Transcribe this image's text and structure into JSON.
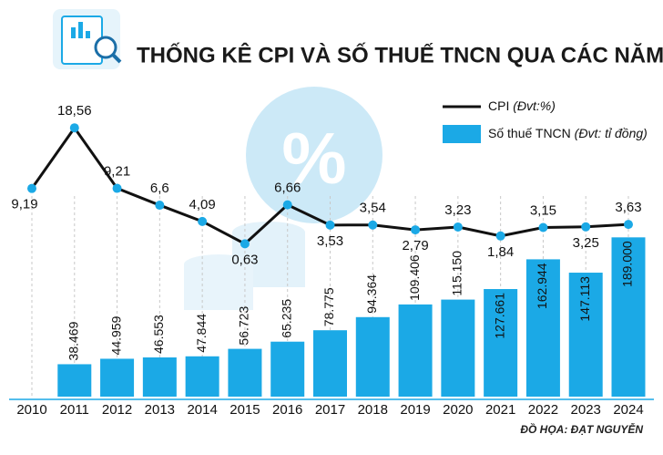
{
  "chart_data": {
    "type": "bar-line",
    "title": "THỐNG KÊ CPI VÀ SỐ THUẾ TNCN QUA CÁC NĂM",
    "credit": "ĐỒ HỌA: ĐẠT NGUYỄN",
    "categories": [
      "2010",
      "2011",
      "2012",
      "2013",
      "2014",
      "2015",
      "2016",
      "2017",
      "2018",
      "2019",
      "2020",
      "2021",
      "2022",
      "2023",
      "2024"
    ],
    "series": [
      {
        "name": "CPI",
        "unit_label": "(Đvt:%)",
        "type": "line",
        "color": "#111111",
        "values": [
          9.19,
          18.56,
          9.21,
          6.6,
          4.09,
          0.63,
          6.66,
          3.53,
          3.54,
          2.79,
          3.23,
          1.84,
          3.15,
          3.25,
          3.63
        ],
        "value_labels": [
          "9,19",
          "18,56",
          "9,21",
          "6,6",
          "4,09",
          "0,63",
          "6,66",
          "3,53",
          "3,54",
          "2,79",
          "3,23",
          "1,84",
          "3,15",
          "3,25",
          "3,63"
        ]
      },
      {
        "name": "Số thuế TNCN",
        "unit_label": "(Đvt: tỉ đồng)",
        "type": "bar",
        "color": "#1ba9e6",
        "axis": "y2",
        "values": [
          null,
          38469,
          44959,
          46553,
          47844,
          56723,
          65235,
          78775,
          94364,
          109406,
          115150,
          127661,
          162944,
          147113,
          189000
        ],
        "value_labels": [
          null,
          "38.469",
          "44.959",
          "46.553",
          "47.844",
          "56.723",
          "65.235",
          "78.775",
          "94.364",
          "109.406",
          "115.150",
          "127.661",
          "162.944",
          "147.113",
          "189.000"
        ]
      }
    ],
    "ylim": [
      -23,
      20
    ],
    "y2lim": [
      0,
      330000
    ]
  }
}
